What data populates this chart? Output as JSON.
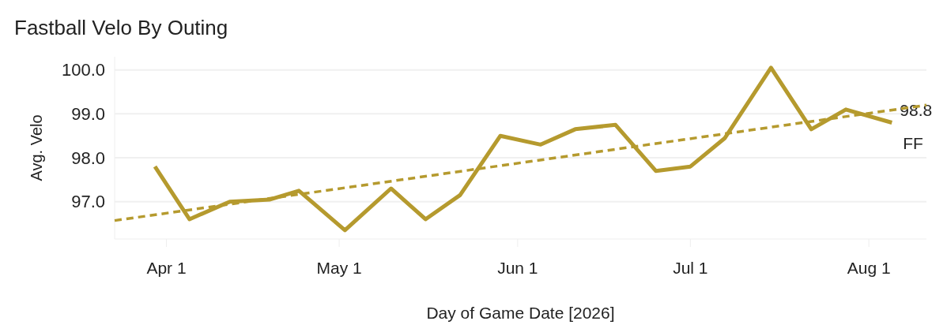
{
  "chart_data": {
    "type": "line",
    "title": "Fastball Velo By Outing",
    "xlabel": "Day of Game Date [2026]",
    "ylabel": "Avg. Velo",
    "ylim": [
      96.15,
      100.3
    ],
    "yticks": [
      {
        "value": 97,
        "label": "97.0"
      },
      {
        "value": 98,
        "label": "98.0"
      },
      {
        "value": 99,
        "label": "99.0"
      },
      {
        "value": 100,
        "label": "100.0"
      }
    ],
    "xlim": [
      "2026-03-23",
      "2026-08-11"
    ],
    "xticks": [
      {
        "value": "2026-04-01",
        "label": "Apr 1"
      },
      {
        "value": "2026-05-01",
        "label": "May 1"
      },
      {
        "value": "2026-06-01",
        "label": "Jun 1"
      },
      {
        "value": "2026-07-01",
        "label": "Jul 1"
      },
      {
        "value": "2026-08-01",
        "label": "Aug 1"
      }
    ],
    "grid": "y",
    "line_style": "solid",
    "series": [
      {
        "name": "FF",
        "color": "#b59a2e",
        "x": [
          "2026-03-30",
          "2026-04-05",
          "2026-04-12",
          "2026-04-19",
          "2026-04-24",
          "2026-05-02",
          "2026-05-10",
          "2026-05-16",
          "2026-05-22",
          "2026-05-29",
          "2026-06-05",
          "2026-06-11",
          "2026-06-18",
          "2026-06-25",
          "2026-07-01",
          "2026-07-07",
          "2026-07-15",
          "2026-07-22",
          "2026-07-28",
          "2026-08-05"
        ],
        "values": [
          97.8,
          96.6,
          97.0,
          97.05,
          97.25,
          96.35,
          97.3,
          96.6,
          97.15,
          98.5,
          98.3,
          98.65,
          98.75,
          97.7,
          97.8,
          98.45,
          100.05,
          98.65,
          99.1,
          98.8
        ],
        "value_labels": [
          null,
          null,
          null,
          null,
          null,
          null,
          null,
          null,
          null,
          null,
          null,
          null,
          null,
          null,
          null,
          null,
          null,
          null,
          null,
          "98.8"
        ]
      },
      {
        "type": "line",
        "color": "#b59a2e",
        "line_style": "dashed",
        "x": [
          "2026-03-23",
          "2026-08-11"
        ],
        "values": [
          96.57,
          99.2
        ]
      }
    ]
  }
}
